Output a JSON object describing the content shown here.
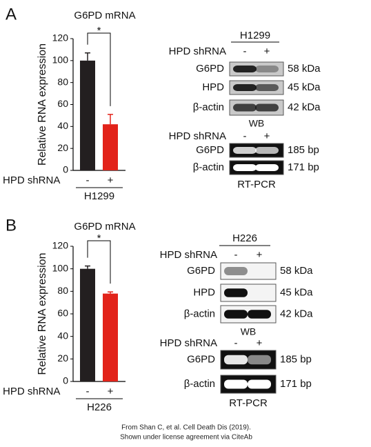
{
  "chart_data": [
    {
      "type": "bar",
      "panel": "A",
      "title": "G6PD mRNA",
      "y_label": "Relative RNA expression",
      "group_label": "HPD shRNA",
      "categories": [
        "-",
        "+"
      ],
      "x_label": "H1299",
      "values": [
        100,
        42
      ],
      "errors": [
        7,
        9
      ],
      "colors": [
        "#231f20",
        "#e2231a"
      ],
      "ylim": [
        0,
        120
      ],
      "yticks": [
        0,
        20,
        40,
        60,
        80,
        100,
        120
      ],
      "significance": "*"
    },
    {
      "type": "bar",
      "panel": "B",
      "title": "G6PD mRNA",
      "y_label": "Relative RNA expression",
      "group_label": "HPD shRNA",
      "categories": [
        "-",
        "+"
      ],
      "x_label": "H226",
      "values": [
        100,
        78
      ],
      "errors": [
        2.5,
        1.5
      ],
      "colors": [
        "#231f20",
        "#e2231a"
      ],
      "ylim": [
        0,
        120
      ],
      "yticks": [
        0,
        20,
        40,
        60,
        80,
        100,
        120
      ],
      "significance": "*"
    }
  ],
  "blots": [
    {
      "cell_line": "H1299",
      "shrna_label": "HPD shRNA",
      "lanes": [
        "-",
        "+"
      ],
      "wb_rows": [
        {
          "label": "G6PD",
          "size": "58 kDa"
        },
        {
          "label": "HPD",
          "size": "45 kDa"
        },
        {
          "label": "β-actin",
          "size": "42 kDa"
        }
      ],
      "wb_label": "WB",
      "pcr_shrna_label": "HPD shRNA",
      "pcr_lanes": [
        "-",
        "+"
      ],
      "pcr_rows": [
        {
          "label": "G6PD",
          "size": "185 bp"
        },
        {
          "label": "β-actin",
          "size": "171 bp"
        }
      ],
      "pcr_label": "RT-PCR"
    },
    {
      "cell_line": "H226",
      "shrna_label": "HPD shRNA",
      "lanes": [
        "-",
        "+"
      ],
      "wb_rows": [
        {
          "label": "G6PD",
          "size": "58 kDa"
        },
        {
          "label": "HPD",
          "size": "45 kDa"
        },
        {
          "label": "β-actin",
          "size": "42 kDa"
        }
      ],
      "wb_label": "WB",
      "pcr_shrna_label": "HPD shRNA",
      "pcr_lanes": [
        "-",
        "+"
      ],
      "pcr_rows": [
        {
          "label": "G6PD",
          "size": "185 bp"
        },
        {
          "label": "β-actin",
          "size": "171 bp"
        }
      ],
      "pcr_label": "RT-PCR"
    }
  ],
  "caption": [
    "From Shan C, et al. Cell Death Dis (2019).",
    "Shown under license agreement via CiteAb"
  ]
}
